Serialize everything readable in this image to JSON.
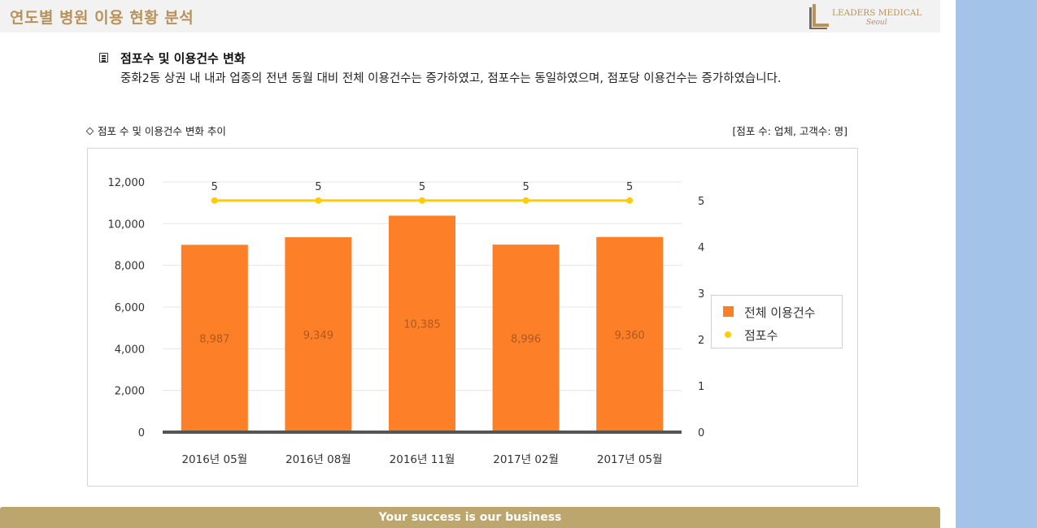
{
  "header": {
    "title": "연도별 병원 이용 현황 분석",
    "logo_text": "LEADERS MEDICAL",
    "logo_script": "Seoul"
  },
  "section": {
    "heading": "점포수 및 이용건수 변화",
    "description": "중화2동 상권 내 내과 업종의 전년 동월 대비 전체 이용건수는 증가하였고, 점포수는 동일하였으며, 점포당 이용건수는 증가하였습니다."
  },
  "chart_caption": "점포 수 및 이용건수 변화 추이",
  "unit_note": "[점포 수: 업체, 고객수: 명]",
  "chart_data": {
    "type": "bar",
    "categories": [
      "2016년 05월",
      "2016년 08월",
      "2016년 11월",
      "2017년 02월",
      "2017년 05월"
    ],
    "series": [
      {
        "name": "전체 이용건수",
        "type": "bar",
        "axis": "left",
        "color": "#fd7f28",
        "values": [
          8987,
          9349,
          10385,
          8996,
          9360
        ],
        "labels": [
          "8,987",
          "9,349",
          "10,385",
          "8,996",
          "9,360"
        ]
      },
      {
        "name": "점포수",
        "type": "line",
        "axis": "right",
        "color": "#ffcc00",
        "values": [
          5,
          5,
          5,
          5,
          5
        ],
        "labels": [
          "5",
          "5",
          "5",
          "5",
          "5"
        ]
      }
    ],
    "ylim": [
      0,
      12000
    ],
    "yticks": [
      "0",
      "2,000",
      "4,000",
      "6,000",
      "8,000",
      "10,000",
      "12,000"
    ],
    "y2lim": [
      0,
      5.4
    ],
    "y2ticks": [
      "0",
      "1",
      "2",
      "3",
      "4",
      "5"
    ],
    "grid": true,
    "legend_position": "right"
  },
  "footer": {
    "text": "Your success is our business"
  }
}
